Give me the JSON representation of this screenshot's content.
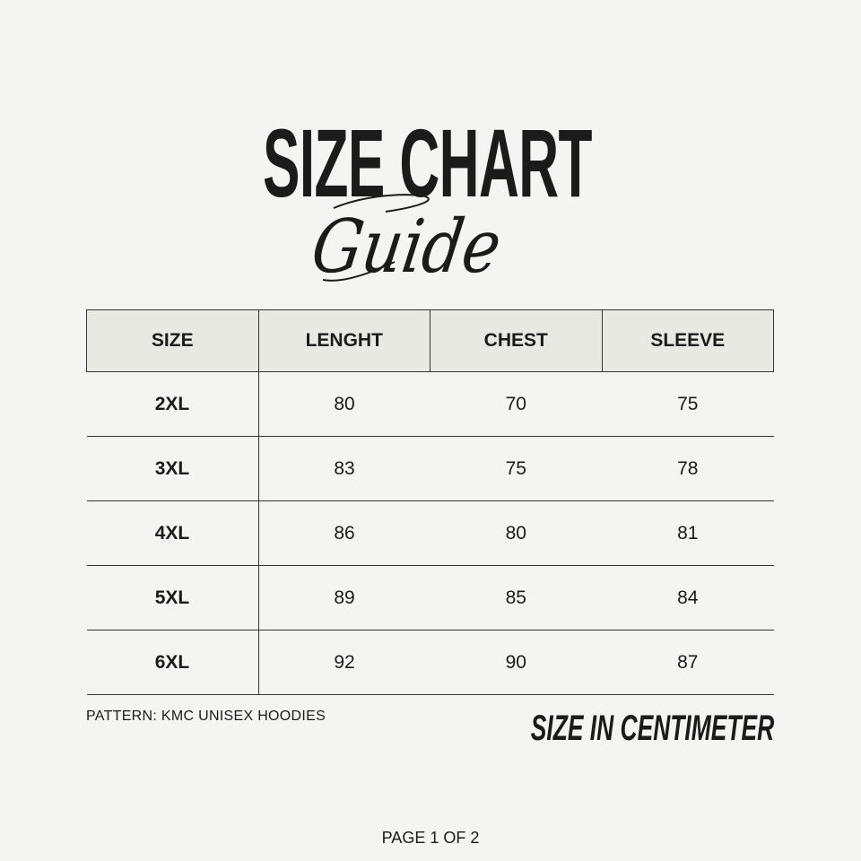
{
  "header": {
    "title": "SIZE CHART",
    "subtitle": "Guide"
  },
  "table": {
    "columns": [
      "SIZE",
      "LENGHT",
      "CHEST",
      "SLEEVE"
    ],
    "rows": [
      [
        "2XL",
        "80",
        "70",
        "75"
      ],
      [
        "3XL",
        "83",
        "75",
        "78"
      ],
      [
        "4XL",
        "86",
        "80",
        "81"
      ],
      [
        "5XL",
        "89",
        "85",
        "84"
      ],
      [
        "6XL",
        "92",
        "90",
        "87"
      ]
    ]
  },
  "footer": {
    "pattern": "PATTERN: KMC UNISEX HOODIES",
    "unit_note": "SIZE IN CENTIMETER",
    "page": "PAGE 1 OF 2"
  },
  "colors": {
    "background": "#f4f4f2",
    "header_fill": "#e9e9e4",
    "text": "#1b1b1b"
  }
}
